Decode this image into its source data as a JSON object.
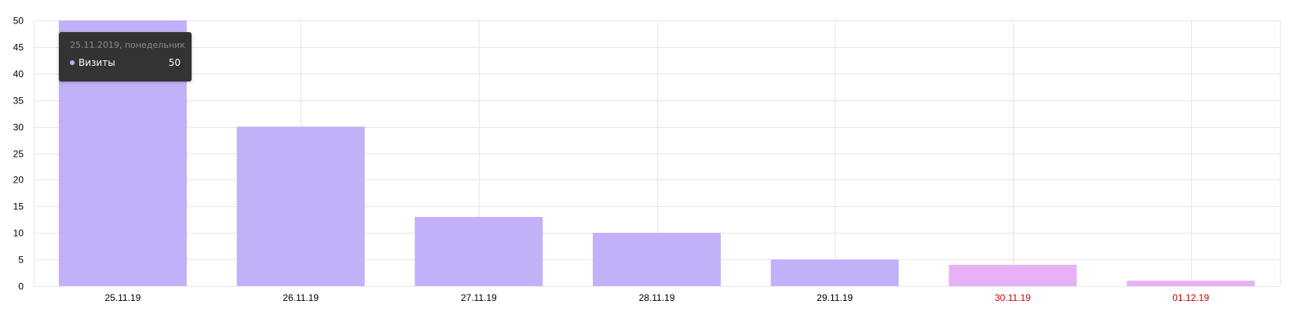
{
  "chart_data": {
    "type": "bar",
    "categories": [
      "25.11.19",
      "26.11.19",
      "27.11.19",
      "28.11.19",
      "29.11.19",
      "30.11.19",
      "01.12.19"
    ],
    "series": [
      {
        "name": "Визиты",
        "values": [
          50,
          30,
          13,
          10,
          5,
          4,
          1
        ]
      }
    ],
    "weekend": [
      false,
      false,
      false,
      false,
      false,
      true,
      true
    ],
    "ylim": [
      0,
      50
    ],
    "yticks": [
      0,
      5,
      10,
      15,
      20,
      25,
      30,
      35,
      40,
      45,
      50
    ],
    "grid": true,
    "colors": {
      "bar": "#c2b1f9",
      "bar_weekend": "#e8b1f7",
      "weekend_label": "#cc0000",
      "label": "#000000",
      "grid": "#e6e6e6"
    }
  },
  "tooltip": {
    "date": "25.11.2019, понедельник",
    "series_name": "Визиты",
    "value": "50",
    "dot_color": "#c2b1f9"
  }
}
